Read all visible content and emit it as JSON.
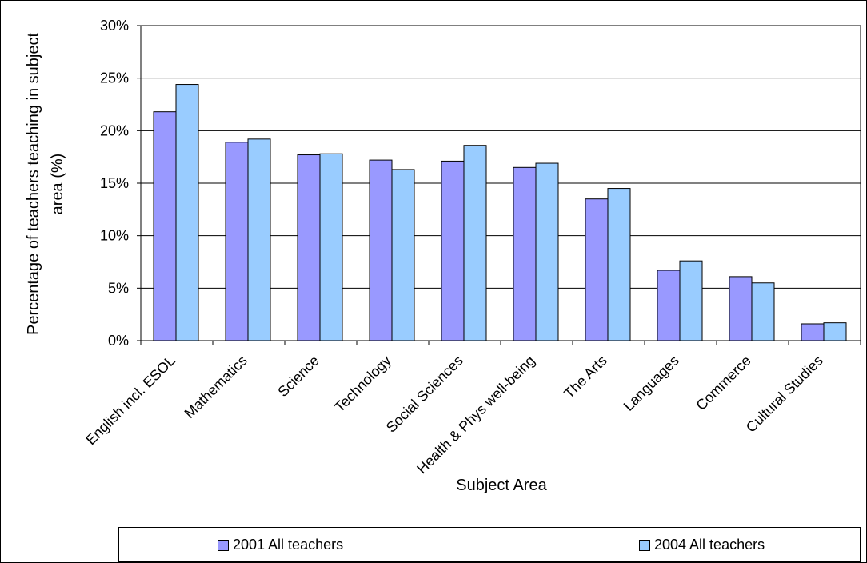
{
  "chart_data": {
    "type": "bar",
    "xlabel": "Subject Area",
    "ylabel": "Percentage of teachers teaching in subject area (%)",
    "ylabel_lines": [
      "Percentage of teachers teaching in subject",
      "area (%)"
    ],
    "ylim": [
      0,
      30
    ],
    "yticks": [
      "0%",
      "5%",
      "10%",
      "15%",
      "20%",
      "25%",
      "30%"
    ],
    "grid": true,
    "legend_position": "bottom",
    "categories": [
      "English incl. ESOL",
      "Mathematics",
      "Science",
      "Technology",
      "Social Sciences",
      "Health & Phys well-being",
      "The Arts",
      "Languages",
      "Commerce",
      "Cultural Studies"
    ],
    "series": [
      {
        "name": "2001 All teachers",
        "color": "#9999FF",
        "values": [
          21.8,
          18.9,
          17.7,
          17.2,
          17.1,
          16.5,
          13.5,
          6.7,
          6.1,
          1.6
        ]
      },
      {
        "name": "2004 All teachers",
        "color": "#99CCFF",
        "values": [
          24.4,
          19.2,
          17.8,
          16.3,
          18.6,
          16.9,
          14.5,
          7.6,
          5.5,
          1.7
        ]
      }
    ]
  }
}
